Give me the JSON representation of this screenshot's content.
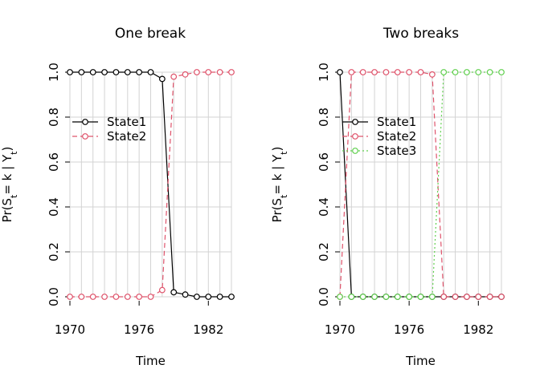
{
  "chart_data": [
    {
      "type": "line",
      "title": "One break",
      "xlabel": "Time",
      "ylabel": "Pr(S_t = k | Y_t)",
      "xlim": [
        1970,
        1984
      ],
      "ylim": [
        0,
        1
      ],
      "xticks": [
        "1970",
        "1976",
        "1982"
      ],
      "yticks": [
        "0.0",
        "0.2",
        "0.4",
        "0.6",
        "0.8",
        "1.0"
      ],
      "grid": true,
      "legend_position": "top-left",
      "x": [
        1970,
        1971,
        1972,
        1973,
        1974,
        1975,
        1976,
        1977,
        1978,
        1979,
        1980,
        1981,
        1982,
        1983,
        1984
      ],
      "series": [
        {
          "name": "State1",
          "color": "#000000",
          "dash": "solid",
          "values": [
            1.0,
            1.0,
            1.0,
            1.0,
            1.0,
            1.0,
            1.0,
            1.0,
            0.97,
            0.02,
            0.01,
            0.0,
            0.0,
            0.0,
            0.0
          ]
        },
        {
          "name": "State2",
          "color": "#DF536B",
          "dash": "dashed",
          "values": [
            0.0,
            0.0,
            0.0,
            0.0,
            0.0,
            0.0,
            0.0,
            0.0,
            0.03,
            0.98,
            0.99,
            1.0,
            1.0,
            1.0,
            1.0
          ]
        }
      ]
    },
    {
      "type": "line",
      "title": "Two breaks",
      "xlabel": "Time",
      "ylabel": "Pr(S_t = k | Y_t)",
      "xlim": [
        1970,
        1984
      ],
      "ylim": [
        0,
        1
      ],
      "xticks": [
        "1970",
        "1976",
        "1982"
      ],
      "yticks": [
        "0.0",
        "0.2",
        "0.4",
        "0.6",
        "0.8",
        "1.0"
      ],
      "grid": true,
      "legend_position": "top-left",
      "x": [
        1970,
        1971,
        1972,
        1973,
        1974,
        1975,
        1976,
        1977,
        1978,
        1979,
        1980,
        1981,
        1982,
        1983,
        1984
      ],
      "series": [
        {
          "name": "State1",
          "color": "#000000",
          "dash": "solid",
          "values": [
            1.0,
            0.0,
            0.0,
            0.0,
            0.0,
            0.0,
            0.0,
            0.0,
            0.0,
            0.0,
            0.0,
            0.0,
            0.0,
            0.0,
            0.0
          ]
        },
        {
          "name": "State2",
          "color": "#DF536B",
          "dash": "dashed",
          "values": [
            0.0,
            1.0,
            1.0,
            1.0,
            1.0,
            1.0,
            1.0,
            1.0,
            0.99,
            0.0,
            0.0,
            0.0,
            0.0,
            0.0,
            0.0
          ]
        },
        {
          "name": "State3",
          "color": "#61D04F",
          "dash": "dotted",
          "values": [
            0.0,
            0.0,
            0.0,
            0.0,
            0.0,
            0.0,
            0.0,
            0.0,
            0.0,
            1.0,
            1.0,
            1.0,
            1.0,
            1.0,
            1.0
          ]
        }
      ]
    }
  ]
}
